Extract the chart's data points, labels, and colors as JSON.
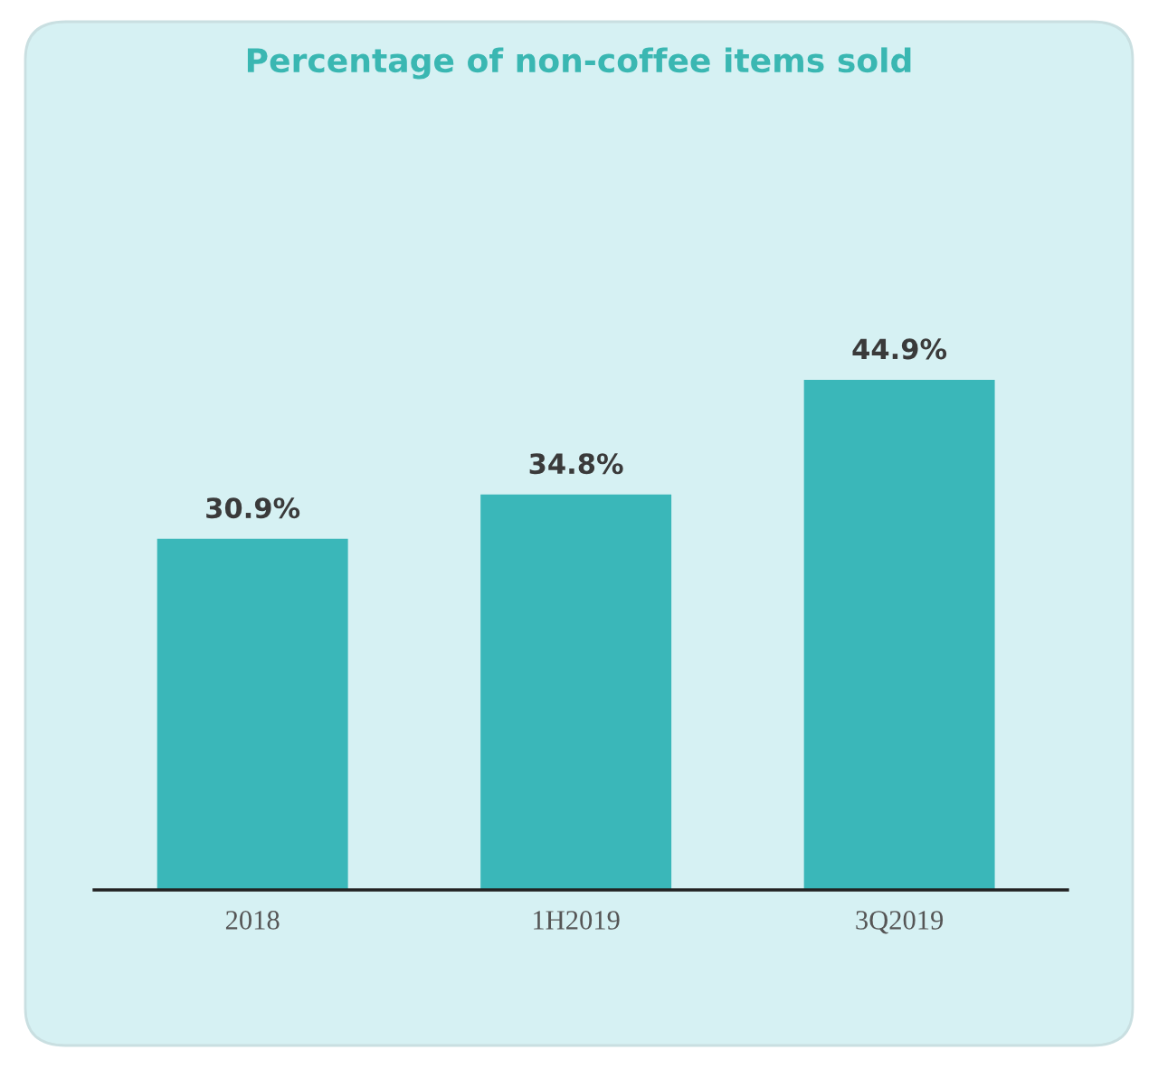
{
  "chart_data": {
    "type": "bar",
    "title": "Percentage of non-coffee items sold",
    "categories": [
      "2018",
      "1H2019",
      "3Q2019"
    ],
    "values": [
      30.9,
      34.8,
      44.9
    ],
    "color": "#3ab7b9",
    "value_labels": [
      "30.9%",
      "34.8%",
      "44.9%"
    ],
    "grid": false,
    "legend": false
  }
}
